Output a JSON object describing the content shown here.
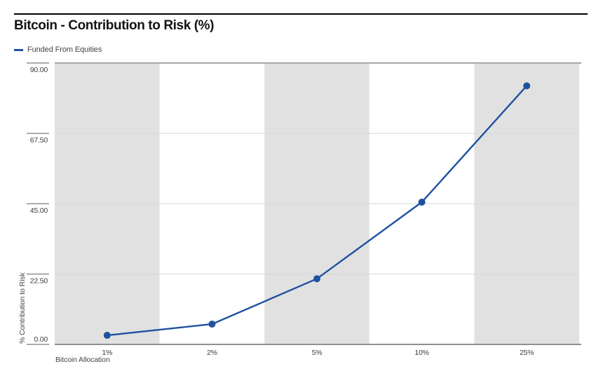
{
  "page": {
    "background": "#ffffff"
  },
  "header": {
    "title": "Bitcoin - Contribution to Risk (%)",
    "rule_color": "#000000"
  },
  "legend": {
    "position": "top-left",
    "items": [
      {
        "label": "Funded From Equities",
        "marker_color": "#1f51a1",
        "marker_shape": "dash"
      }
    ]
  },
  "chart_data": {
    "type": "line",
    "title": "Bitcoin - Contribution to Risk (%)",
    "categories": [
      "1%",
      "2%",
      "5%",
      "10%",
      "25%"
    ],
    "series": [
      {
        "name": "Funded From Equities",
        "color": "#1f51a1",
        "marker": "circle",
        "values": [
          2.9,
          6.5,
          21.0,
          45.5,
          82.7
        ]
      }
    ],
    "xlabel": "Bitcoin Allocation",
    "ylabel": "% Contribution to Risk",
    "ylim": [
      0,
      90
    ],
    "yticks": [
      {
        "value": 0,
        "label": "0.00"
      },
      {
        "value": 22.5,
        "label": "22.50"
      },
      {
        "value": 45,
        "label": "45.00"
      },
      {
        "value": 67.5,
        "label": "67.50"
      },
      {
        "value": 90,
        "label": "90.00"
      }
    ],
    "grid": true,
    "legend_position": "top-left",
    "band_colors": [
      "#e1e1e1",
      "#ffffff"
    ],
    "gridline_color": "#d9d9d9",
    "border_top_color": "#a8a8a8",
    "border_bottom_color": "#8f8f8f",
    "tick_color": "#8f8f8f",
    "label_color": "#3d3d3d"
  }
}
